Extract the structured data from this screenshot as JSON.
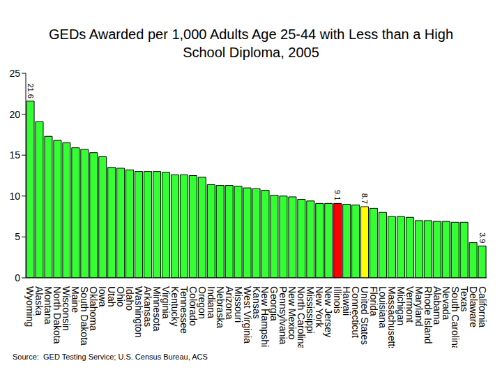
{
  "chart_data": {
    "type": "bar",
    "title": "GEDs Awarded per 1,000 Adults Age 25-44 with Less than a High School Diploma, 2005",
    "source": "Source:  GED Testing Service; U.S. Census Bureau, ACS",
    "categories": [
      "Wyoming",
      "Alaska",
      "Montana",
      "North Dakota",
      "Wisconsin",
      "Maine",
      "South Dakota",
      "Oklahoma",
      "Iowa",
      "Utah",
      "Ohio",
      "Idaho",
      "Washington",
      "Arkansas",
      "Minnesota",
      "Virginia",
      "Kentucky",
      "Tennessee",
      "Colorado",
      "Oregon",
      "Indiana",
      "Nebraska",
      "Arizona",
      "Missouri",
      "West Virginia",
      "Kansas",
      "New Hampshire",
      "Georgia",
      "Pennsylvania",
      "New Mexico",
      "North Carolina",
      "Mississippi",
      "New York",
      "New Jersey",
      "Illinois",
      "Hawaii",
      "Connecticut",
      "United States",
      "Florida",
      "Louisiana",
      "Massachusetts",
      "Michigan",
      "Vermont",
      "Maryland",
      "Rhode Island",
      "Alabama",
      "Nevada",
      "South Carolina",
      "Texas",
      "Delaware",
      "California"
    ],
    "values": [
      21.6,
      19.1,
      17.3,
      16.8,
      16.5,
      15.9,
      15.7,
      15.3,
      14.8,
      13.5,
      13.4,
      13.2,
      13.0,
      13.0,
      13.0,
      12.9,
      12.6,
      12.6,
      12.5,
      12.3,
      11.4,
      11.3,
      11.3,
      11.2,
      11.0,
      10.9,
      10.7,
      10.1,
      10.0,
      9.9,
      9.6,
      9.4,
      9.1,
      9.1,
      9.1,
      9.0,
      8.9,
      8.7,
      8.5,
      8.0,
      7.5,
      7.5,
      7.4,
      7.0,
      7.0,
      6.9,
      6.9,
      6.8,
      6.8,
      4.3,
      3.9
    ],
    "value_labels": [
      "21.6",
      null,
      null,
      null,
      null,
      null,
      null,
      null,
      null,
      null,
      null,
      null,
      null,
      null,
      null,
      null,
      null,
      null,
      null,
      null,
      null,
      null,
      null,
      null,
      null,
      null,
      null,
      null,
      null,
      null,
      null,
      null,
      null,
      null,
      "9.1",
      null,
      null,
      "8.7",
      null,
      null,
      null,
      null,
      null,
      null,
      null,
      null,
      null,
      null,
      null,
      null,
      "3.9"
    ],
    "colors": [
      "#33FF33",
      "#33FF33",
      "#33FF33",
      "#33FF33",
      "#33FF33",
      "#33FF33",
      "#33FF33",
      "#33FF33",
      "#33FF33",
      "#33FF33",
      "#33FF33",
      "#33FF33",
      "#33FF33",
      "#33FF33",
      "#33FF33",
      "#33FF33",
      "#33FF33",
      "#33FF33",
      "#33FF33",
      "#33FF33",
      "#33FF33",
      "#33FF33",
      "#33FF33",
      "#33FF33",
      "#33FF33",
      "#33FF33",
      "#33FF33",
      "#33FF33",
      "#33FF33",
      "#33FF33",
      "#33FF33",
      "#33FF33",
      "#33FF33",
      "#33FF33",
      "#FF0000",
      "#33FF33",
      "#33FF33",
      "#FFFF00",
      "#33FF33",
      "#33FF33",
      "#33FF33",
      "#33FF33",
      "#33FF33",
      "#33FF33",
      "#33FF33",
      "#33FF33",
      "#33FF33",
      "#33FF33",
      "#33FF33",
      "#33FF33",
      "#33FF33"
    ],
    "data_labels": true,
    "ylim": [
      0,
      25
    ],
    "yticks": [
      0,
      5,
      10,
      15,
      20,
      25
    ],
    "grid": false
  }
}
